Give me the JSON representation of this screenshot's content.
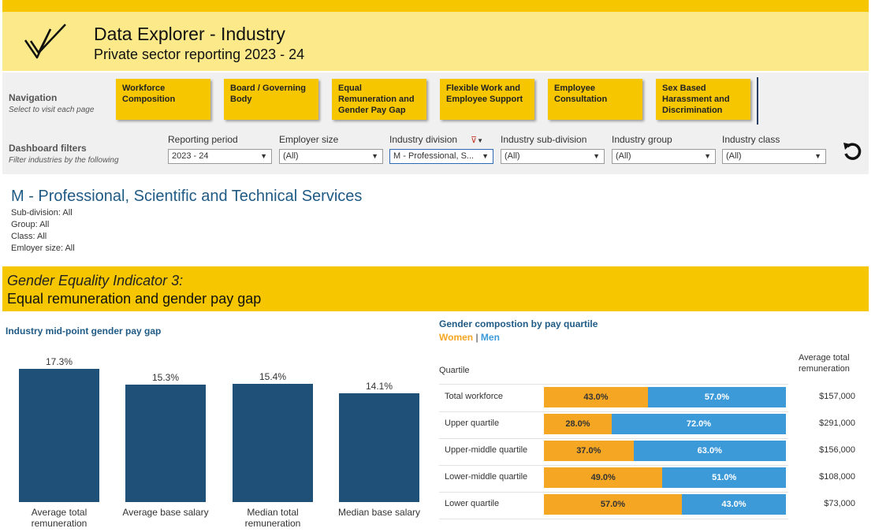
{
  "header": {
    "title": "Data Explorer - Industry",
    "subtitle": "Private sector reporting 2023 - 24",
    "logo_icon": "checkmark-logo-icon"
  },
  "navigation": {
    "label": "Navigation",
    "hint": "Select to visit each page",
    "buttons": [
      {
        "label": "Workforce Composition"
      },
      {
        "label": "Board / Governing Body"
      },
      {
        "label": "Equal Remuneration and Gender Pay Gap"
      },
      {
        "label": "Flexible Work and Employee Support"
      },
      {
        "label": "Employee Consultation"
      },
      {
        "label": "Sex Based Harassment and Discrimination"
      }
    ]
  },
  "filters": {
    "label": "Dashboard filters",
    "hint": "Filter industries by the following",
    "items": [
      {
        "label": "Reporting period",
        "value": "2023 - 24"
      },
      {
        "label": "Employer size",
        "value": "(All)"
      },
      {
        "label": "Industry division",
        "value": "M - Professional, S..."
      },
      {
        "label": "Industry sub-division",
        "value": "(All)"
      },
      {
        "label": "Industry group",
        "value": "(All)"
      },
      {
        "label": "Industry class",
        "value": "(All)"
      }
    ],
    "reset_icon": "reset-icon"
  },
  "industry": {
    "title": "M - Professional, Scientific and Technical Services",
    "subdivision": "Sub-division: All",
    "group": "Group: All",
    "class": "Class: All",
    "employer_size": "Emloyer size: All"
  },
  "indicator": {
    "line1": "Gender Equality Indicator 3:",
    "line2": "Equal remuneration and gender pay gap"
  },
  "chart_data": [
    {
      "type": "bar",
      "title": "Industry mid-point gender pay gap",
      "categories": [
        "Average total remuneration",
        "Average base salary",
        "Median total remuneration",
        "Median base salary"
      ],
      "values": [
        17.3,
        15.3,
        15.4,
        14.1
      ],
      "value_labels": [
        "17.3%",
        "15.3%",
        "15.4%",
        "14.1%"
      ],
      "unit": "%",
      "ylim": [
        0,
        17.3
      ],
      "color": "#1f5077"
    },
    {
      "type": "bar",
      "title": "Gender compostion by pay quartile",
      "legend": [
        "Women",
        "Men"
      ],
      "column_header": "Quartile",
      "remuneration_header": "Average total remuneration",
      "categories": [
        "Total workforce",
        "Upper quartile",
        "Upper-middle quartile",
        "Lower-middle quartile",
        "Lower quartile"
      ],
      "series": [
        {
          "name": "Women",
          "values": [
            43.0,
            28.0,
            37.0,
            49.0,
            57.0
          ],
          "labels": [
            "43.0%",
            "28.0%",
            "37.0%",
            "49.0%",
            "57.0%"
          ],
          "color": "#f5a623"
        },
        {
          "name": "Men",
          "values": [
            57.0,
            72.0,
            63.0,
            51.0,
            43.0
          ],
          "labels": [
            "57.0%",
            "72.0%",
            "63.0%",
            "51.0%",
            "43.0%"
          ],
          "color": "#3d9ad9"
        }
      ],
      "remuneration": [
        "$157,000",
        "$291,000",
        "$156,000",
        "$108,000",
        "$73,000"
      ],
      "stacked": true
    }
  ]
}
